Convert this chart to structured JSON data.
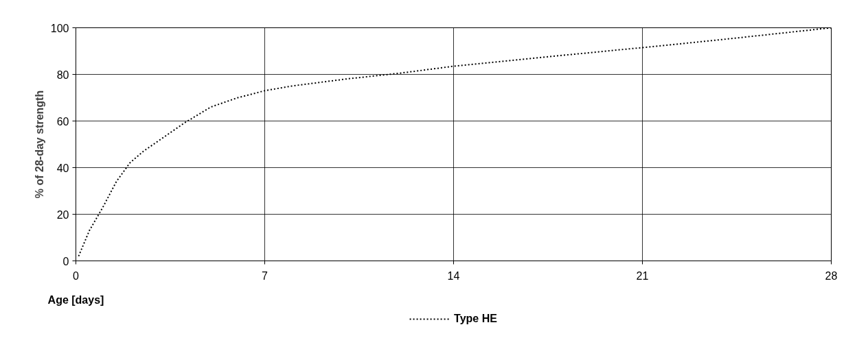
{
  "chart_data": {
    "type": "line",
    "xlabel": "Age [days]",
    "ylabel": "% of 28-day strength",
    "xlim": [
      0,
      28
    ],
    "ylim": [
      0,
      100
    ],
    "xticks": [
      0,
      7,
      14,
      21,
      28
    ],
    "yticks": [
      0,
      20,
      40,
      60,
      80,
      100
    ],
    "grid": true,
    "legend": "bottom",
    "line_style": "dashed",
    "marker": "none",
    "series": [
      {
        "name": "Type HE",
        "color": "#000000",
        "x": [
          0.1,
          0.5,
          1,
          1.5,
          2,
          2.5,
          3,
          3.5,
          4,
          5,
          6,
          7,
          8,
          10,
          12,
          14,
          17,
          21,
          24,
          28
        ],
        "values": [
          2,
          13,
          23,
          34,
          42,
          47,
          51,
          55,
          59,
          66,
          70,
          73,
          75,
          78,
          80.5,
          83.5,
          87,
          91.5,
          95,
          100
        ]
      }
    ]
  }
}
